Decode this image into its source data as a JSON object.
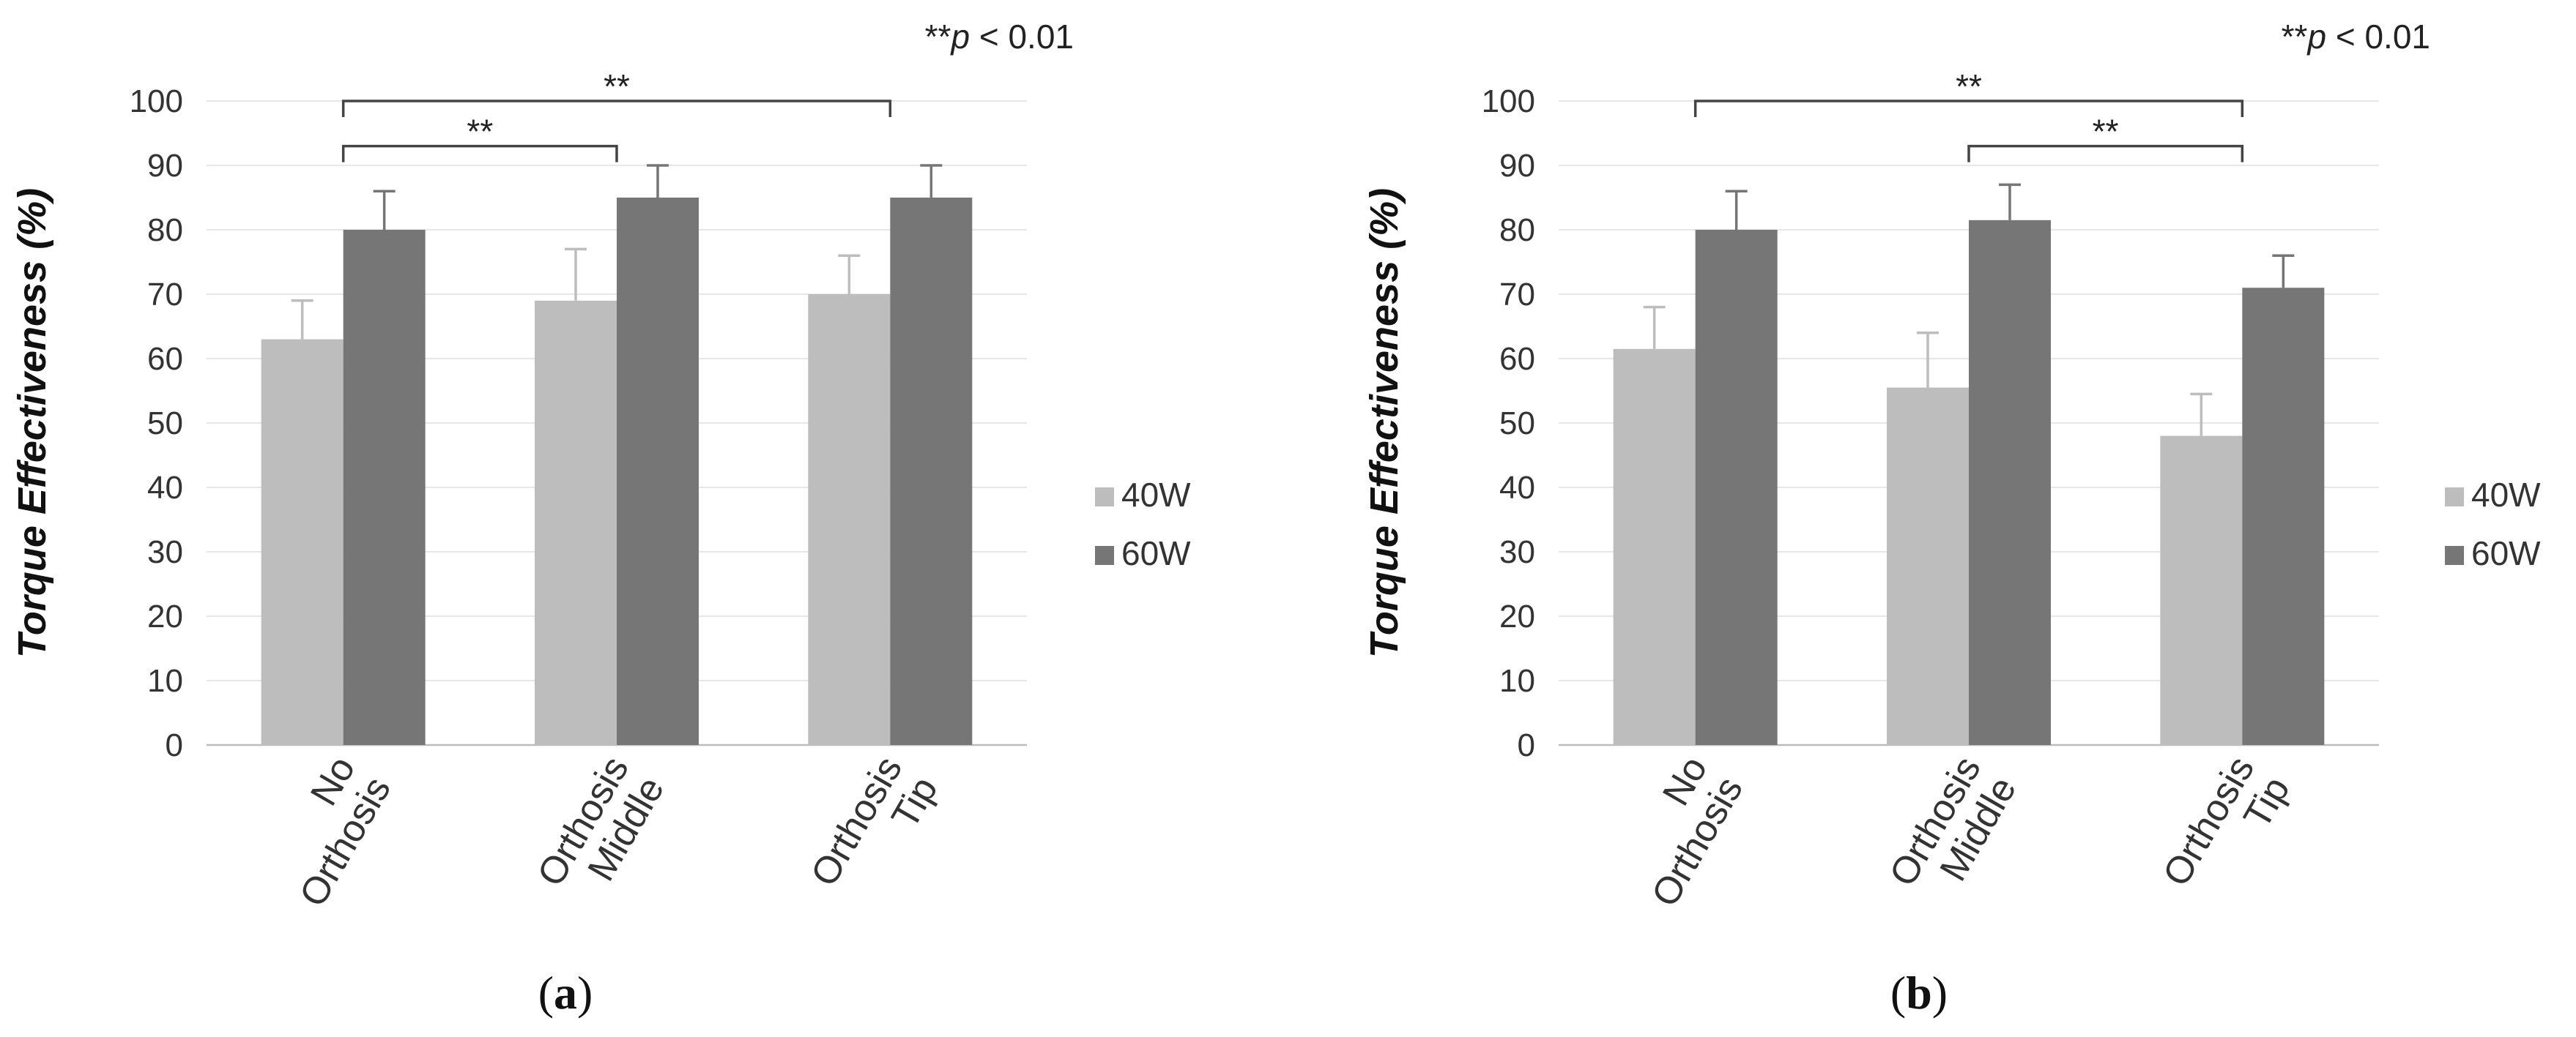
{
  "chart_data": [
    {
      "panel_label": "a",
      "type": "bar",
      "title": "",
      "xlabel": "",
      "ylabel": "Torque Effectiveness (%)",
      "ylim": [
        0,
        100
      ],
      "yticks": [
        0,
        10,
        20,
        30,
        40,
        50,
        60,
        70,
        80,
        90,
        100
      ],
      "grid": true,
      "legend_position": "right",
      "note": {
        "prefix": "**",
        "italic": "p",
        "suffix": " < 0.01"
      },
      "categories": [
        {
          "line1": "No",
          "line2": "Orthosis"
        },
        {
          "line1": "Orthosis",
          "line2": "Middle"
        },
        {
          "line1": "Orthosis",
          "line2": "Tip"
        }
      ],
      "series": [
        {
          "name": "40W",
          "color": "#bdbdbd",
          "values": [
            63,
            69,
            70
          ],
          "errors": [
            6,
            8,
            6
          ]
        },
        {
          "name": "60W",
          "color": "#767676",
          "values": [
            80,
            85,
            85
          ],
          "errors": [
            6,
            5,
            5
          ]
        }
      ],
      "significance": [
        {
          "from_category": 0,
          "to_category": 1,
          "label": "**",
          "y": 93
        },
        {
          "from_category": 0,
          "to_category": 2,
          "label": "**",
          "y": 100
        }
      ]
    },
    {
      "panel_label": "b",
      "type": "bar",
      "title": "",
      "xlabel": "",
      "ylabel": "Torque Effectiveness (%)",
      "ylim": [
        0,
        100
      ],
      "yticks": [
        0,
        10,
        20,
        30,
        40,
        50,
        60,
        70,
        80,
        90,
        100
      ],
      "grid": true,
      "legend_position": "right",
      "note": {
        "prefix": "**",
        "italic": "p",
        "suffix": " < 0.01"
      },
      "categories": [
        {
          "line1": "No",
          "line2": "Orthosis"
        },
        {
          "line1": "Orthosis",
          "line2": "Middle"
        },
        {
          "line1": "Orthosis",
          "line2": "Tip"
        }
      ],
      "series": [
        {
          "name": "40W",
          "color": "#bdbdbd",
          "values": [
            61.5,
            55.5,
            48
          ],
          "errors": [
            6.5,
            8.5,
            6.5
          ]
        },
        {
          "name": "60W",
          "color": "#767676",
          "values": [
            80,
            81.5,
            71
          ],
          "errors": [
            6,
            5.5,
            5
          ]
        }
      ],
      "significance": [
        {
          "from_category": 0,
          "to_category": 2,
          "label": "**",
          "y": 100
        },
        {
          "from_category": 1,
          "to_category": 2,
          "label": "**",
          "y": 93
        }
      ]
    }
  ]
}
